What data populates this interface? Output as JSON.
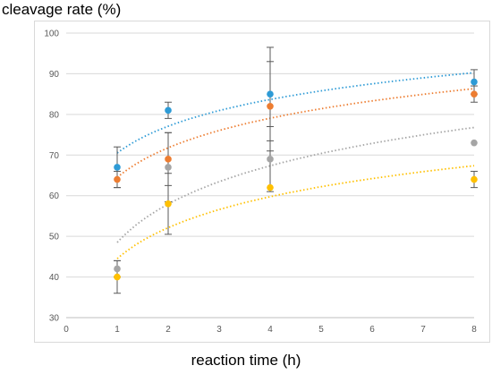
{
  "chart_data": {
    "type": "scatter",
    "title": "",
    "xlabel": "reaction time (h)",
    "ylabel": "cleavage rate (%)",
    "xlim": [
      0,
      8
    ],
    "ylim": [
      30,
      100
    ],
    "x_ticks": [
      "0",
      "1",
      "2",
      "3",
      "4",
      "5",
      "6",
      "7",
      "8"
    ],
    "y_ticks": [
      "30",
      "40",
      "50",
      "60",
      "70",
      "80",
      "90",
      "100"
    ],
    "grid": true,
    "trendline": "logarithmic, dotted",
    "x": [
      1,
      2,
      4,
      8
    ],
    "series": [
      {
        "color": "#2e9bd6",
        "values": [
          67,
          81,
          85,
          88
        ],
        "errors": [
          5,
          2,
          11.5,
          3
        ],
        "trend": {
          "intercept": 70.5,
          "slope": 9.5
        }
      },
      {
        "color": "#ed7d31",
        "values": [
          64,
          69,
          82,
          85
        ],
        "errors": [
          2,
          6.5,
          11,
          2
        ],
        "trend": {
          "intercept": 64.5,
          "slope": 10.5
        }
      },
      {
        "color": "#a5a5a5",
        "values": [
          42,
          67,
          69,
          73
        ],
        "errors": [
          2,
          8.5,
          8,
          0
        ],
        "trend": {
          "intercept": 48.5,
          "slope": 13.6
        }
      },
      {
        "color": "#ffc000",
        "values": [
          40,
          58,
          62,
          64
        ],
        "errors": [
          4,
          7.5,
          0,
          2
        ],
        "trend": {
          "intercept": 44.5,
          "slope": 11
        }
      }
    ]
  }
}
